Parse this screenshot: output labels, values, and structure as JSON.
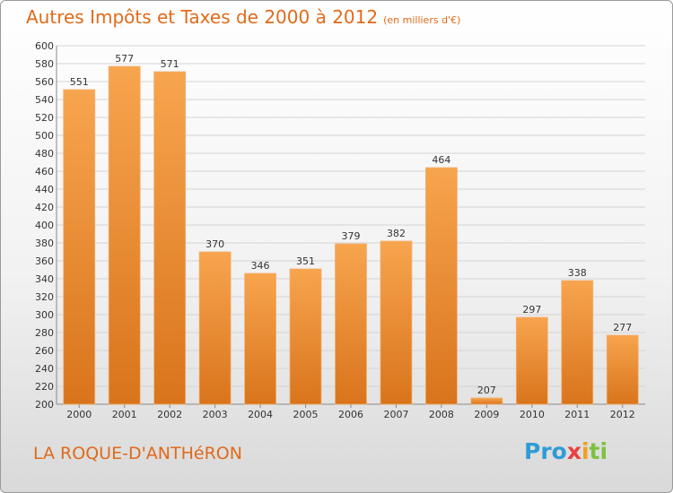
{
  "header": {
    "title": "Autres Impôts et Taxes de 2000 à 2012",
    "unit": "(en milliers d'€)"
  },
  "footer": {
    "commune": "LA ROQUE-D'ANTHéRON",
    "logo_parts": [
      "Pro",
      "x",
      "i",
      "ti"
    ]
  },
  "colors": {
    "bar_top": "#f7a54e",
    "bar_bottom": "#d9741c",
    "title": "#e06a1a"
  },
  "chart_data": {
    "type": "bar",
    "title": "Autres Impôts et Taxes de 2000 à 2012",
    "subtitle": "(en milliers d'€)",
    "xlabel": "",
    "ylabel": "",
    "categories": [
      "2000",
      "2001",
      "2002",
      "2003",
      "2004",
      "2005",
      "2006",
      "2007",
      "2008",
      "2009",
      "2010",
      "2011",
      "2012"
    ],
    "values": [
      551,
      577,
      571,
      370,
      346,
      351,
      379,
      382,
      464,
      207,
      297,
      338,
      277
    ],
    "ylim": [
      200,
      600
    ],
    "ytick_step": 20,
    "grid": true
  }
}
